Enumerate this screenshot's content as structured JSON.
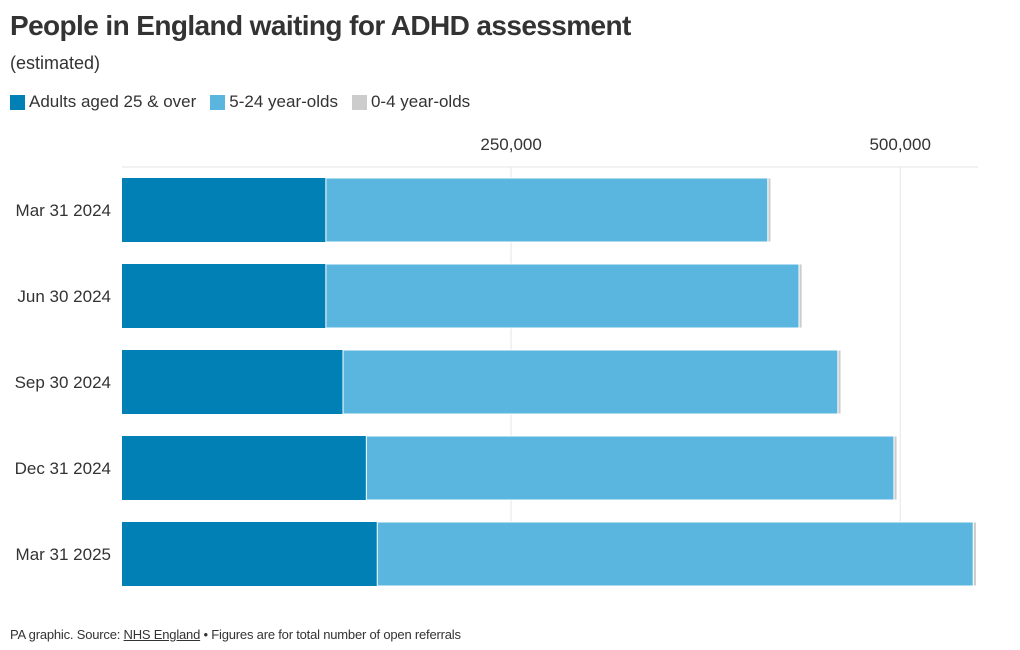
{
  "title": "People in England waiting for ADHD assessment",
  "subtitle": "(estimated)",
  "footer": {
    "prefix": "PA graphic. Source: ",
    "source_link": "NHS England",
    "suffix": " • Figures are for total number of open referrals"
  },
  "colors": {
    "adults": "#0180b5",
    "youth": "#5ab6de",
    "infants": "#cccccc",
    "gridline": "#e6e6e6"
  },
  "chart_data": {
    "type": "bar",
    "orientation": "horizontal",
    "stacked": true,
    "categories": [
      "Mar 31 2024",
      "Jun 30 2024",
      "Sep 30 2024",
      "Dec 31 2024",
      "Mar 31 2025"
    ],
    "series": [
      {
        "name": "Adults aged 25 & over",
        "color": "#0180b5",
        "values": [
          131000,
          131000,
          142000,
          157000,
          164000
        ]
      },
      {
        "name": "5-24 year-olds",
        "color": "#5ab6de",
        "values": [
          284000,
          304000,
          318000,
          339000,
          383000
        ]
      },
      {
        "name": "0-4 year-olds",
        "color": "#cccccc",
        "values": [
          2000,
          2000,
          2000,
          2000,
          2000
        ]
      }
    ],
    "xlim": [
      0,
      550000
    ],
    "xticks": [
      250000,
      500000
    ],
    "xtick_labels": [
      "250,000",
      "500,000"
    ],
    "axis_position": "top",
    "grid": true,
    "legend_position": "top-left"
  }
}
